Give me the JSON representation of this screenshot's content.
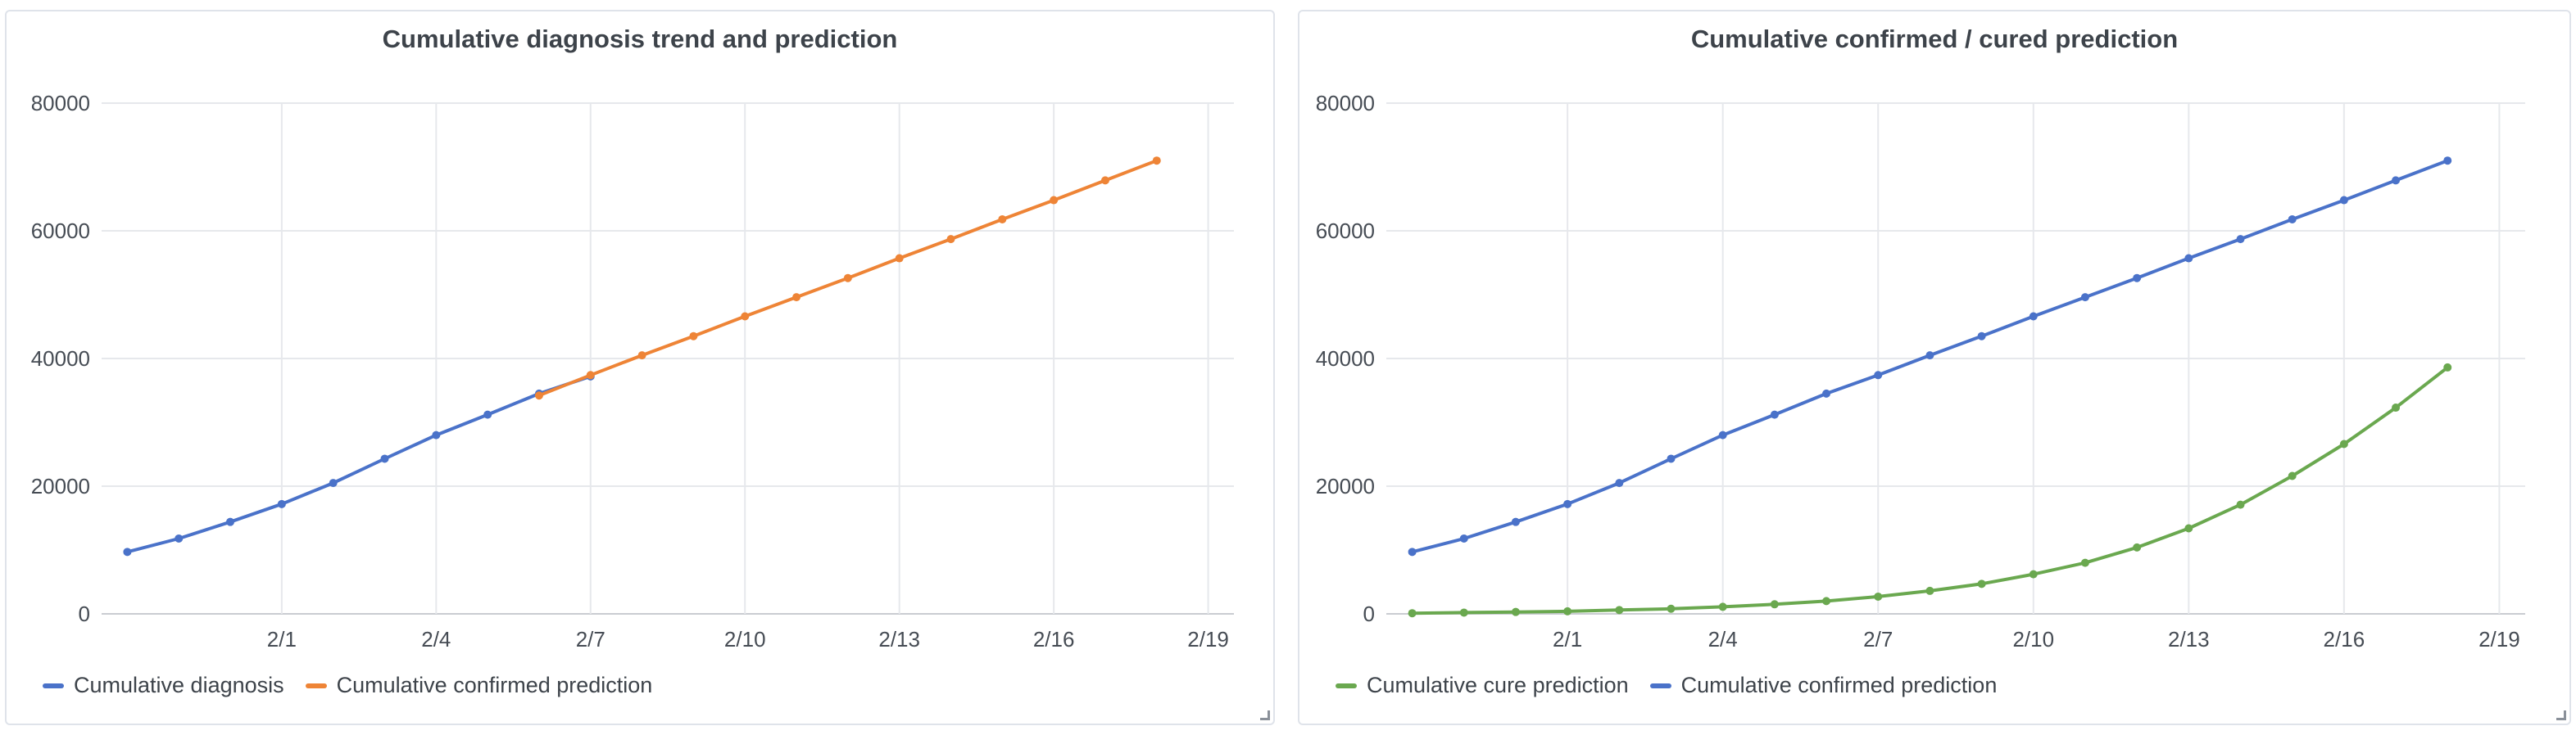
{
  "chart_data": [
    {
      "type": "line",
      "title": "Cumulative diagnosis trend and prediction",
      "x": [
        "1/29",
        "1/30",
        "1/31",
        "2/1",
        "2/2",
        "2/3",
        "2/4",
        "2/5",
        "2/6",
        "2/7",
        "2/8",
        "2/9",
        "2/10",
        "2/11",
        "2/12",
        "2/13",
        "2/14",
        "2/15",
        "2/16",
        "2/17",
        "2/18",
        "2/19"
      ],
      "x_tick_labels": [
        "2/1",
        "2/4",
        "2/7",
        "2/10",
        "2/13",
        "2/16",
        "2/19"
      ],
      "y_tick_labels": [
        "0",
        "20000",
        "40000",
        "60000",
        "80000"
      ],
      "ylim": [
        0,
        80000
      ],
      "grid": true,
      "legend_position": "bottom-left",
      "series": [
        {
          "name": "Cumulative diagnosis",
          "color": "#4a72c9",
          "values": [
            9700,
            11800,
            14400,
            17200,
            20500,
            24300,
            28000,
            31200,
            34500,
            37200,
            null,
            null,
            null,
            null,
            null,
            null,
            null,
            null,
            null,
            null,
            null,
            null
          ]
        },
        {
          "name": "Cumulative confirmed prediction",
          "color": "#ee8436",
          "values": [
            null,
            null,
            null,
            null,
            null,
            null,
            null,
            null,
            34200,
            37400,
            40500,
            43500,
            46600,
            49600,
            52600,
            55700,
            58700,
            61800,
            64800,
            67900,
            71000,
            null
          ]
        }
      ]
    },
    {
      "type": "line",
      "title": "Cumulative confirmed / cured prediction",
      "x": [
        "1/29",
        "1/30",
        "1/31",
        "2/1",
        "2/2",
        "2/3",
        "2/4",
        "2/5",
        "2/6",
        "2/7",
        "2/8",
        "2/9",
        "2/10",
        "2/11",
        "2/12",
        "2/13",
        "2/14",
        "2/15",
        "2/16",
        "2/17",
        "2/18",
        "2/19"
      ],
      "x_tick_labels": [
        "2/1",
        "2/4",
        "2/7",
        "2/10",
        "2/13",
        "2/16",
        "2/19"
      ],
      "y_tick_labels": [
        "0",
        "20000",
        "40000",
        "60000",
        "80000"
      ],
      "ylim": [
        0,
        80000
      ],
      "grid": true,
      "legend_position": "bottom-left",
      "series": [
        {
          "name": "Cumulative cure prediction",
          "color": "#6aa84f",
          "values": [
            100,
            200,
            300,
            400,
            600,
            800,
            1100,
            1500,
            2000,
            2700,
            3600,
            4700,
            6200,
            8000,
            10400,
            13400,
            17100,
            21600,
            26600,
            32300,
            38600,
            null
          ]
        },
        {
          "name": "Cumulative confirmed prediction",
          "color": "#4a72c9",
          "values": [
            9700,
            11800,
            14400,
            17200,
            20500,
            24300,
            28000,
            31200,
            34500,
            37400,
            40500,
            43500,
            46600,
            49600,
            52600,
            55700,
            58700,
            61800,
            64800,
            67900,
            71000,
            null
          ]
        }
      ]
    }
  ]
}
